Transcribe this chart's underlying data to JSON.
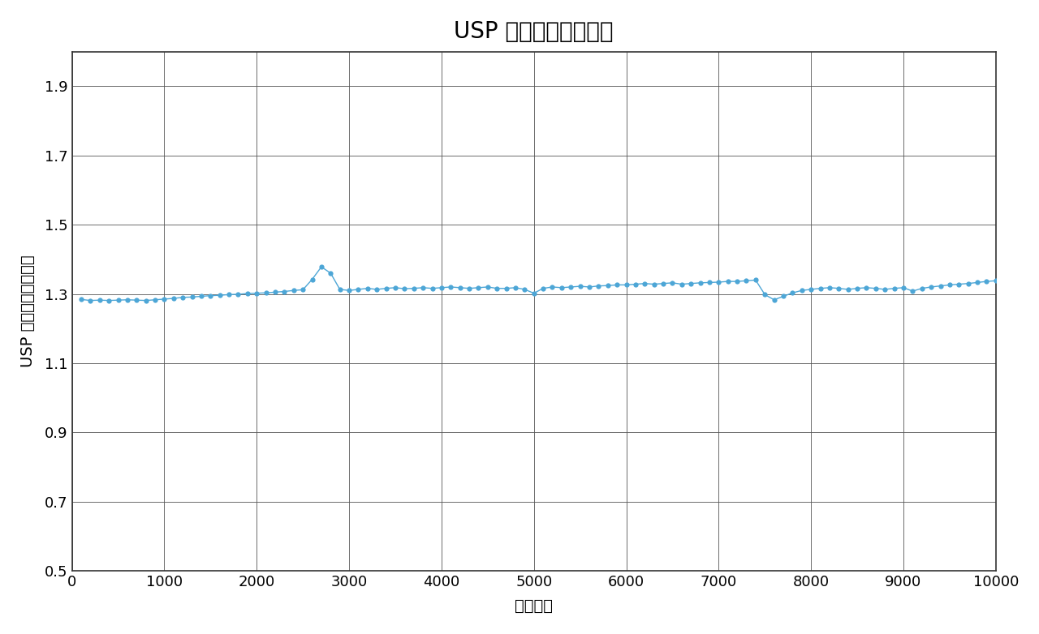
{
  "title": "USP 法テーリング係数",
  "xlabel": "注入回数",
  "ylabel": "USP 法テーリング係数",
  "xlim": [
    0,
    10000
  ],
  "ylim": [
    0.5,
    2.0
  ],
  "yticks": [
    0.5,
    0.7,
    0.9,
    1.1,
    1.3,
    1.5,
    1.7,
    1.9
  ],
  "xticks": [
    0,
    1000,
    2000,
    3000,
    4000,
    5000,
    6000,
    7000,
    8000,
    9000,
    10000
  ],
  "line_color": "#4da6d6",
  "marker_color": "#4da6d6",
  "background_color": "#ffffff",
  "title_fontsize": 20,
  "label_fontsize": 14,
  "tick_fontsize": 13,
  "x_data": [
    100,
    200,
    300,
    400,
    500,
    600,
    700,
    800,
    900,
    1000,
    1100,
    1200,
    1300,
    1400,
    1500,
    1600,
    1700,
    1800,
    1900,
    2000,
    2100,
    2200,
    2300,
    2400,
    2500,
    2600,
    2700,
    2800,
    2900,
    3000,
    3100,
    3200,
    3300,
    3400,
    3500,
    3600,
    3700,
    3800,
    3900,
    4000,
    4100,
    4200,
    4300,
    4400,
    4500,
    4600,
    4700,
    4800,
    4900,
    5000,
    5100,
    5200,
    5300,
    5400,
    5500,
    5600,
    5700,
    5800,
    5900,
    6000,
    6100,
    6200,
    6300,
    6400,
    6500,
    6600,
    6700,
    6800,
    6900,
    7000,
    7100,
    7200,
    7300,
    7400,
    7500,
    7600,
    7700,
    7800,
    7900,
    8000,
    8100,
    8200,
    8300,
    8400,
    8500,
    8600,
    8700,
    8800,
    8900,
    9000,
    9100,
    9200,
    9300,
    9400,
    9500,
    9600,
    9700,
    9800,
    9900,
    10000
  ],
  "y_data": [
    1.284,
    1.281,
    1.282,
    1.281,
    1.282,
    1.283,
    1.282,
    1.281,
    1.283,
    1.285,
    1.287,
    1.29,
    1.291,
    1.293,
    1.295,
    1.296,
    1.298,
    1.299,
    1.301,
    1.302,
    1.303,
    1.305,
    1.307,
    1.31,
    1.312,
    1.342,
    1.378,
    1.36,
    1.313,
    1.31,
    1.313,
    1.316,
    1.313,
    1.316,
    1.318,
    1.315,
    1.316,
    1.318,
    1.316,
    1.318,
    1.32,
    1.318,
    1.316,
    1.318,
    1.32,
    1.316,
    1.316,
    1.318,
    1.313,
    1.302,
    1.316,
    1.32,
    1.318,
    1.32,
    1.322,
    1.32,
    1.323,
    1.324,
    1.326,
    1.326,
    1.328,
    1.33,
    1.328,
    1.33,
    1.332,
    1.328,
    1.33,
    1.332,
    1.333,
    1.334,
    1.336,
    1.336,
    1.338,
    1.34,
    1.298,
    1.283,
    1.293,
    1.303,
    1.31,
    1.313,
    1.316,
    1.318,
    1.316,
    1.313,
    1.316,
    1.318,
    1.316,
    1.313,
    1.316,
    1.318,
    1.308,
    1.316,
    1.32,
    1.323,
    1.326,
    1.328,
    1.33,
    1.333,
    1.336,
    1.338
  ]
}
